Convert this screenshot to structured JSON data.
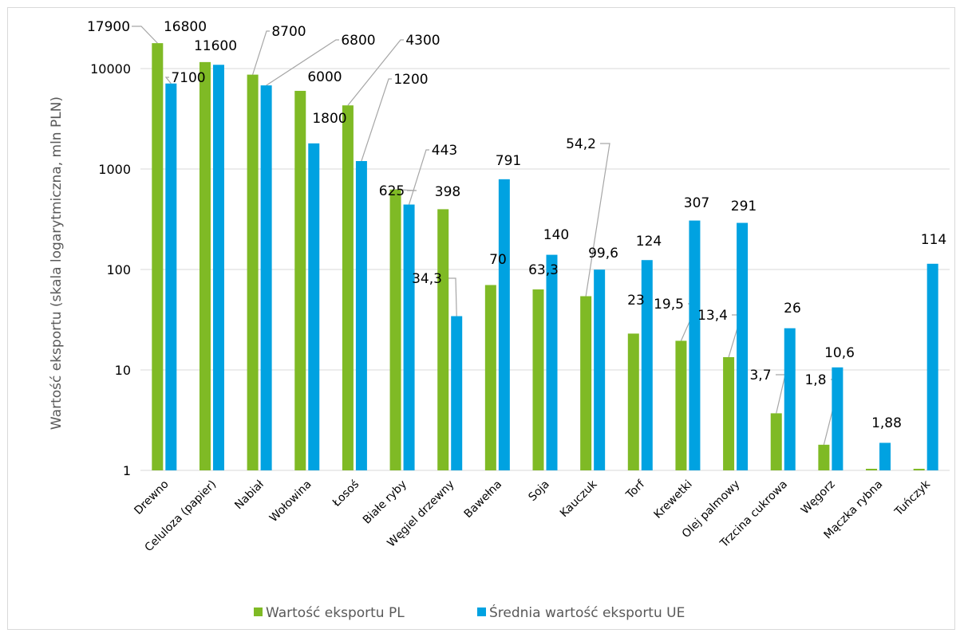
{
  "chart_data": {
    "type": "bar",
    "ylabel": "Wartość eksportu (skala logarytmiczna, mln PLN)",
    "yscale": "log",
    "ylim": [
      1,
      20000
    ],
    "y_ticks": [
      1,
      10,
      100,
      1000,
      10000
    ],
    "y_tick_labels": [
      "1",
      "10",
      "100",
      "1000",
      "10000"
    ],
    "grid": true,
    "legend_position": "bottom",
    "categories": [
      "Drewno",
      "Celuloza (papier)",
      "Nabiał",
      "Wołowina",
      "Łosoś",
      "Białe ryby",
      "Węgiel drzewny",
      "Bawełna",
      "Soja",
      "Kauczuk",
      "Torf",
      "Krewetki",
      "Olej palmowy",
      "Trzcina cukrowa",
      "Węgorz",
      "Mączka rybna",
      "Tuńczyk"
    ],
    "series": [
      {
        "name": "Wartość eksportu PL",
        "color": "#7fba25",
        "values": [
          17900,
          11600,
          8700,
          6000,
          4300,
          625,
          398,
          70,
          63.3,
          54.2,
          23,
          19.5,
          13.4,
          3.7,
          1.8,
          0.97,
          0.97
        ],
        "labels": [
          "17900",
          "11600",
          "8700",
          "6000",
          "4300",
          "625",
          "398",
          "70",
          "63,3",
          "54,2",
          "23",
          "19,5",
          "13,4",
          "3,7",
          "1,8",
          "",
          ""
        ]
      },
      {
        "name": "Średnia wartość eksportu UE",
        "color": "#00a2e1",
        "values": [
          7100,
          10900,
          6800,
          1800,
          1200,
          443,
          34.3,
          791,
          140,
          99.6,
          124,
          307,
          291,
          26,
          10.6,
          1.88,
          114
        ],
        "labels": [
          "7100",
          "",
          "6800",
          "1800",
          "1200",
          "443",
          "34,3",
          "791",
          "140",
          "99,6",
          "124",
          "307",
          "291",
          "26",
          "10,6",
          "1,88",
          "114"
        ]
      }
    ],
    "extra_labels": [
      "16800"
    ]
  }
}
